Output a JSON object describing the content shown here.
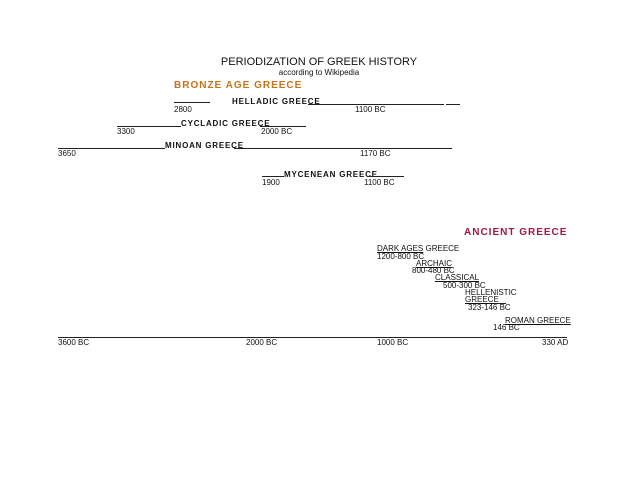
{
  "title": "PERIODIZATION OF GREEK HISTORY",
  "subtitle": "according to Wikipedia",
  "sections": {
    "bronze_age": {
      "label": "BRONZE AGE GREECE",
      "color": "#c8731a"
    },
    "ancient": {
      "label": "ANCIENT GREECE",
      "color": "#a0154a"
    }
  },
  "bronze_periods": {
    "helladic": {
      "name": "HELLADIC GREECE",
      "start": "2800",
      "end": "1100 BC"
    },
    "cycladic": {
      "name": "CYCLADIC GREECE",
      "start": "3300",
      "end": "2000 BC"
    },
    "minoan": {
      "name": "MINOAN GREECE",
      "start": "3650",
      "end": "1170 BC"
    },
    "mycenean": {
      "name": "MYCENEAN GREECE",
      "start": "1900",
      "end": "1100 BC"
    }
  },
  "ancient_periods": {
    "dark_ages": {
      "name_part1": "DARK AGES",
      "name_part2": "GREECE",
      "dates": "1200-800 BC"
    },
    "archaic": {
      "name": "ARCHAIC",
      "dates": "800-480 BC"
    },
    "classical": {
      "name": "CLASSICAL",
      "dates": "500-300 BC"
    },
    "hellenistic": {
      "name_line1": "HELLENISTIC",
      "name_line2": "GREECE",
      "dates": "323-146 BC"
    },
    "roman": {
      "name": "ROMAN GREECE",
      "dates": "146 BC"
    }
  },
  "axis": {
    "ticks": [
      "3600 BC",
      "2000 BC",
      "1000 BC",
      "330 AD"
    ]
  }
}
